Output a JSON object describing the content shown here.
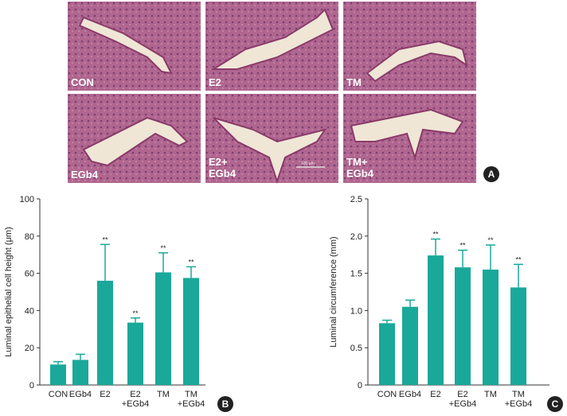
{
  "panel_a": {
    "panel_label": "A",
    "scale_bar_label": "100 μm",
    "images": [
      {
        "label": "CON"
      },
      {
        "label": "E2"
      },
      {
        "label": "TM"
      },
      {
        "label": "EGb4"
      },
      {
        "label": "E2+\nEGb4"
      },
      {
        "label": "TM+\nEGb4"
      }
    ]
  },
  "chart_data": [
    {
      "type": "bar",
      "panel_label": "B",
      "ylabel": "Luminal epithelial cell height (μm)",
      "categories": [
        "CON",
        "EGb4",
        "E2",
        "E2\n+EGb4",
        "TM",
        "TM\n+EGb4"
      ],
      "values": [
        11,
        13.5,
        56,
        33.5,
        60.5,
        57.5
      ],
      "errors": [
        1.5,
        3,
        19.5,
        2.5,
        10.5,
        6
      ],
      "annotations": [
        null,
        null,
        "**",
        "**",
        "**",
        "**"
      ],
      "color": "#1aa89a",
      "ylim": [
        0,
        100
      ],
      "yticks": [
        0,
        20,
        40,
        60,
        80,
        100
      ]
    },
    {
      "type": "bar",
      "panel_label": "C",
      "ylabel": "Luminal circumference (mm)",
      "categories": [
        "CON",
        "EGb4",
        "E2",
        "E2\n+EGb4",
        "TM",
        "TM\n+EGb4"
      ],
      "values": [
        0.83,
        1.05,
        1.74,
        1.58,
        1.55,
        1.31
      ],
      "errors": [
        0.04,
        0.09,
        0.22,
        0.23,
        0.33,
        0.31
      ],
      "annotations": [
        null,
        null,
        "**",
        "**",
        "**",
        "**"
      ],
      "color": "#1aa89a",
      "ylim": [
        0,
        2.5
      ],
      "yticks": [
        0,
        0.5,
        {
          "value": 1,
          "label": "1.0"
        },
        1.5,
        {
          "value": 2,
          "label": "2.0"
        },
        2.5
      ]
    }
  ]
}
